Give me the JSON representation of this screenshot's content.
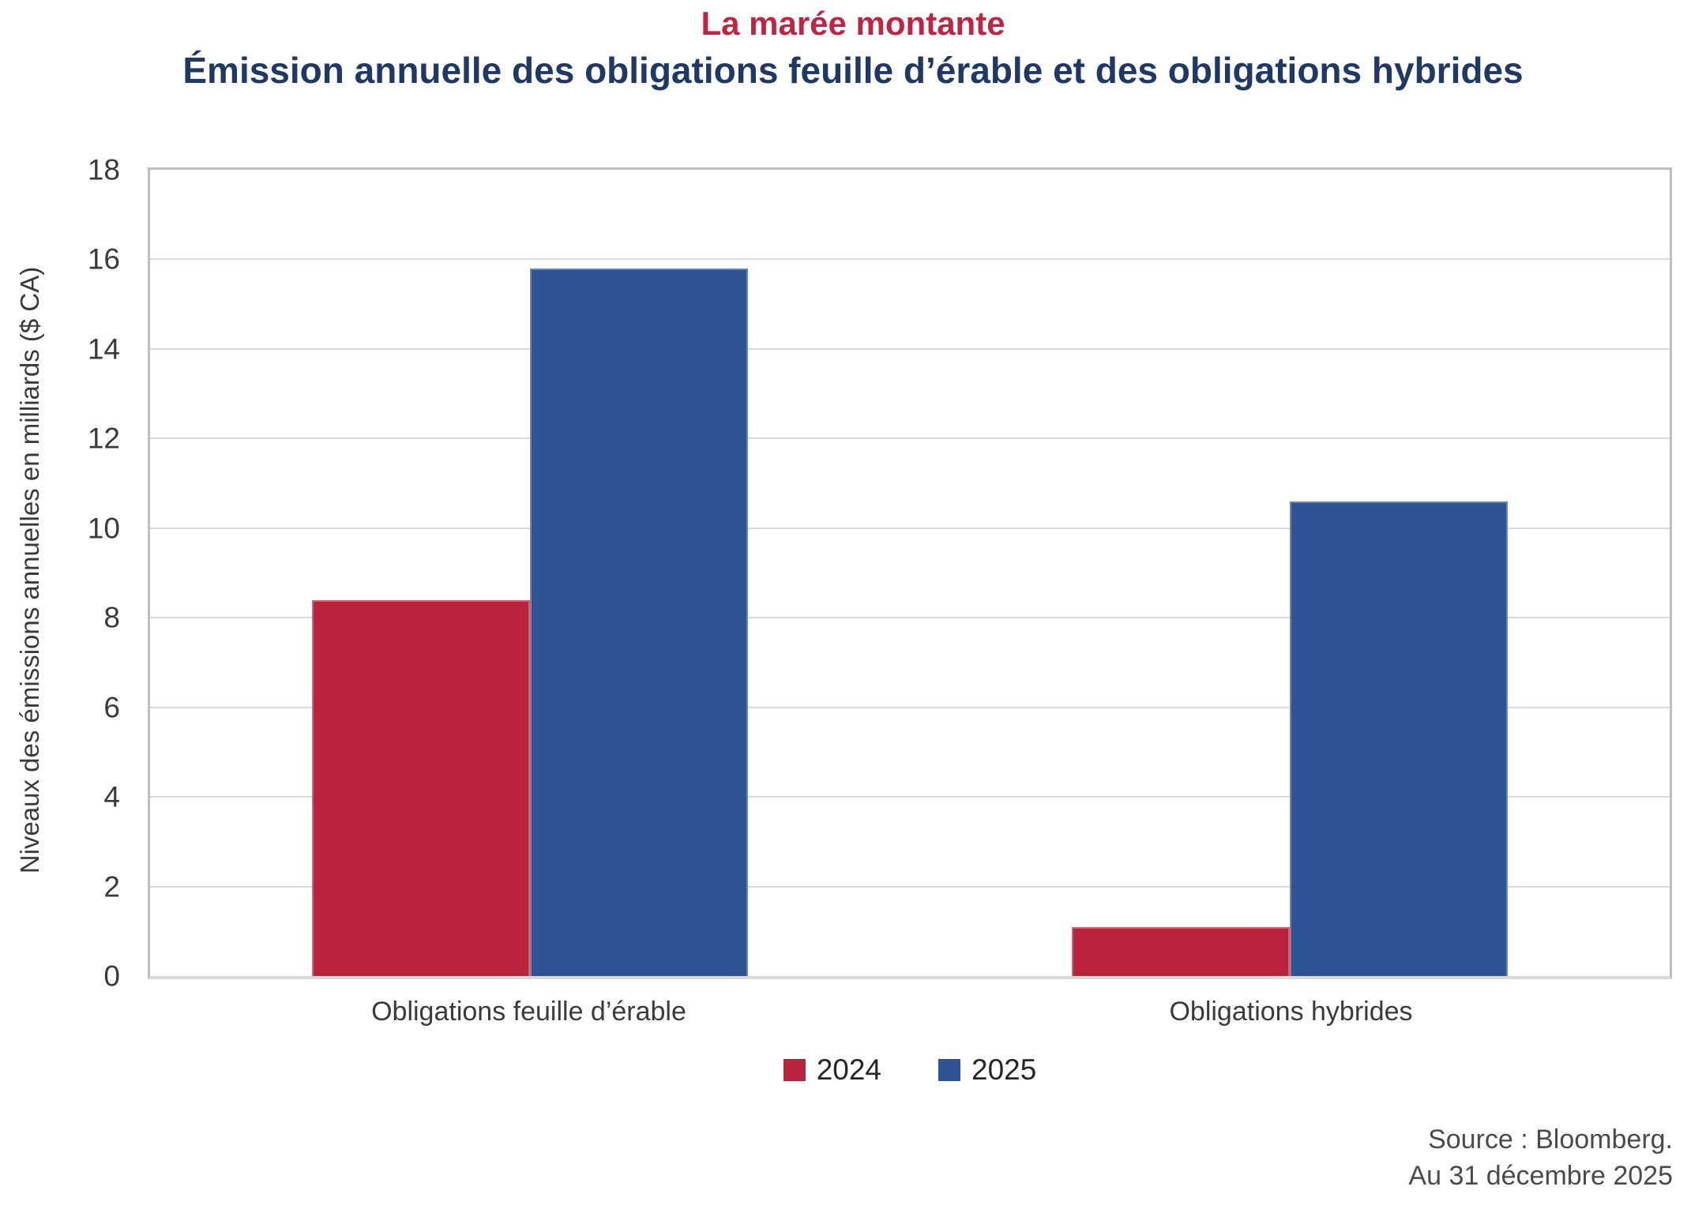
{
  "header": {
    "title": "La marée montante",
    "subtitle": "Émission annuelle des obligations feuille d’érable et des obligations hybrides",
    "title_color": "#BE2443",
    "subtitle_color": "#1F3864"
  },
  "chart_data": {
    "type": "bar",
    "title": "La marée montante",
    "subtitle": "Émission annuelle des obligations feuille d’érable et des obligations hybrides",
    "ylabel": "Niveaux des émissions annuelles en milliards ($ CA)",
    "xlabel": "",
    "categories": [
      "Obligations feuille d’érable",
      "Obligations hybrides"
    ],
    "series": [
      {
        "name": "2024",
        "color": "#B9233C",
        "values": [
          8.4,
          1.1
        ]
      },
      {
        "name": "2025",
        "color": "#2F5496",
        "values": [
          15.8,
          10.6
        ]
      }
    ],
    "ylim": [
      0,
      18
    ],
    "yticks": [
      0,
      2,
      4,
      6,
      8,
      10,
      12,
      14,
      16,
      18
    ],
    "grid": true,
    "gridline_color": "#D9D9D9",
    "plot_border_color": "#BFBFBF",
    "axis_line_color": "#D9D9D9",
    "legend_position": "bottom"
  },
  "footer": {
    "source": "Source : Bloomberg.",
    "as_of": "Au 31 décembre 2025"
  }
}
